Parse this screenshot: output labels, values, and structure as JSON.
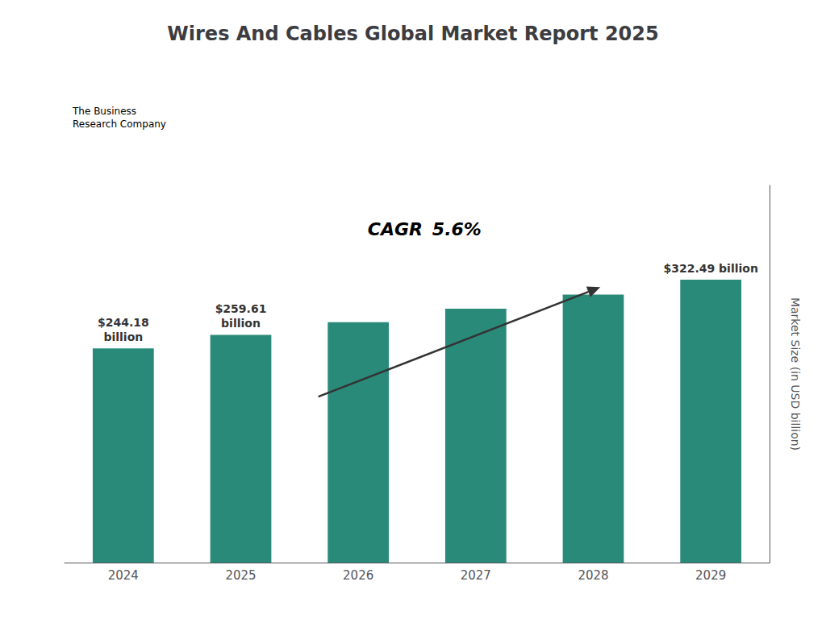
{
  "chart_data": {
    "type": "bar",
    "title": "Wires And Cables Global Market Report 2025",
    "categories": [
      "2024",
      "2025",
      "2026",
      "2027",
      "2028",
      "2029"
    ],
    "values": [
      244.18,
      259.61,
      274.0,
      289.5,
      305.5,
      322.49
    ],
    "color": "#2a8a7a",
    "ylabel": "Market Size (in USD billion)",
    "ylim": [
      0,
      430
    ],
    "yticks": [],
    "grid": false,
    "tick_labels": "x",
    "data_labels": true,
    "value_labels": [
      "$244.18\nbillion",
      "$259.61\nbillion",
      null,
      null,
      null,
      "$322.49 billion"
    ],
    "annotations": [
      "CAGR",
      "5.6%",
      "The Business\nResearch Company"
    ]
  }
}
